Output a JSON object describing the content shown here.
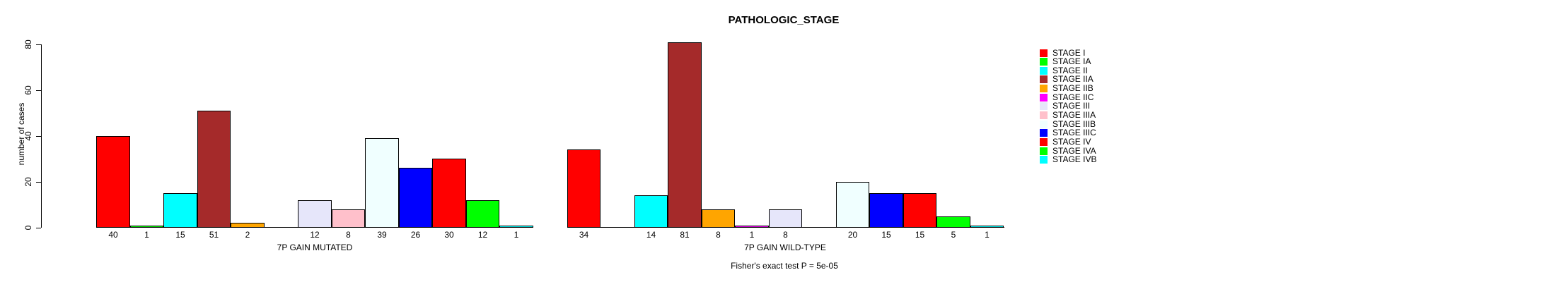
{
  "chart_data": {
    "type": "bar",
    "title": "PATHOLOGIC_STAGE",
    "ylabel": "number of cases",
    "ylim": [
      0,
      80
    ],
    "yticks": [
      0,
      20,
      40,
      60,
      80
    ],
    "grid": false,
    "legend_position": "right",
    "annotation": "Fisher's exact test P = 5e-05",
    "stages": [
      {
        "label": "STAGE I",
        "color": "#FF0000"
      },
      {
        "label": "STAGE IA",
        "color": "#00FF00"
      },
      {
        "label": "STAGE II",
        "color": "#00FFFF"
      },
      {
        "label": "STAGE IIA",
        "color": "#A52A2A"
      },
      {
        "label": "STAGE IIB",
        "color": "#FFA500"
      },
      {
        "label": "STAGE IIC",
        "color": "#FF00FF"
      },
      {
        "label": "STAGE III",
        "color": "#E6E6FA"
      },
      {
        "label": "STAGE IIIA",
        "color": "#FFC0CB"
      },
      {
        "label": "STAGE IIIB",
        "color": "#F0FFFF"
      },
      {
        "label": "STAGE IIIC",
        "color": "#0000FF"
      },
      {
        "label": "STAGE IV",
        "color": "#FF0000"
      },
      {
        "label": "STAGE IVA",
        "color": "#00FF00"
      },
      {
        "label": "STAGE IVB",
        "color": "#00FFFF"
      }
    ],
    "groups": [
      {
        "label": "7P GAIN MUTATED",
        "values": [
          40,
          1,
          15,
          51,
          2,
          0,
          12,
          8,
          39,
          26,
          30,
          12,
          1
        ]
      },
      {
        "label": "7P GAIN WILD-TYPE",
        "values": [
          34,
          0,
          14,
          81,
          8,
          1,
          8,
          0,
          20,
          15,
          15,
          5,
          1
        ]
      }
    ]
  }
}
